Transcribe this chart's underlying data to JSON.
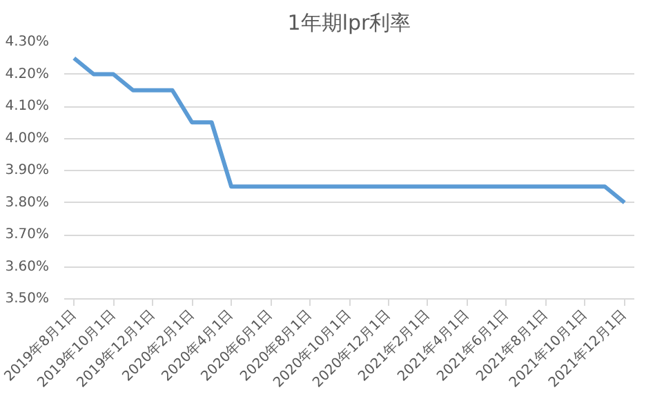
{
  "chart_data": {
    "type": "line",
    "title": "1年期lpr利率",
    "categories": [
      "2019年8月1日",
      null,
      "2019年10月1日",
      null,
      "2019年12月1日",
      null,
      "2020年2月1日",
      null,
      "2020年4月1日",
      null,
      "2020年6月1日",
      null,
      "2020年8月1日",
      null,
      "2020年10月1日",
      null,
      "2020年12月1日",
      null,
      "2021年2月1日",
      null,
      "2021年4月1日",
      null,
      "2021年6月1日",
      null,
      "2021年8月1日",
      null,
      "2021年10月1日",
      null,
      "2021年12月1日"
    ],
    "series": [
      {
        "color": "#5b9bd5",
        "values": [
          4.25,
          4.2,
          4.2,
          4.15,
          4.15,
          4.15,
          4.05,
          4.05,
          3.85,
          3.85,
          3.85,
          3.85,
          3.85,
          3.85,
          3.85,
          3.85,
          3.85,
          3.85,
          3.85,
          3.85,
          3.85,
          3.85,
          3.85,
          3.85,
          3.85,
          3.85,
          3.85,
          3.85,
          3.8
        ]
      }
    ],
    "ylim": [
      3.5,
      4.3
    ],
    "yticks": [
      {
        "value": 3.5,
        "label": "3.50%"
      },
      {
        "value": 3.6,
        "label": "3.60%"
      },
      {
        "value": 3.7,
        "label": "3.70%"
      },
      {
        "value": 3.8,
        "label": "3.80%"
      },
      {
        "value": 3.9,
        "label": "3.90%"
      },
      {
        "value": 4.0,
        "label": "4.00%"
      },
      {
        "value": 4.1,
        "label": "4.10%"
      },
      {
        "value": 4.2,
        "label": "4.20%"
      },
      {
        "value": 4.3,
        "label": "4.30%"
      }
    ],
    "grid": "y",
    "marker": "none",
    "line_style": "solid"
  }
}
